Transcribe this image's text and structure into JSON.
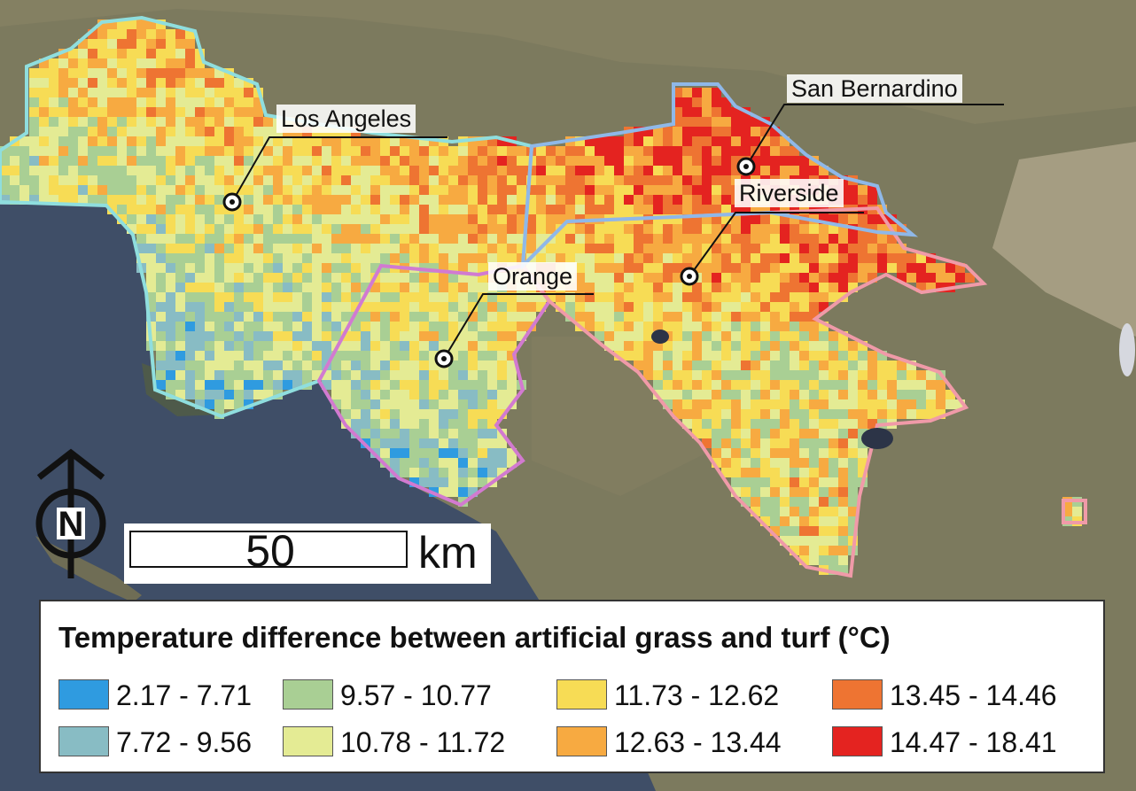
{
  "map": {
    "cities": [
      {
        "name": "Los Angeles"
      },
      {
        "name": "San Bernardino"
      },
      {
        "name": "Riverside"
      },
      {
        "name": "Orange"
      }
    ],
    "north_arrow_letter": "N",
    "scale": {
      "value": "50",
      "unit": "km"
    }
  },
  "legend": {
    "title": "Temperature difference between artificial grass and turf (°C)",
    "items": [
      {
        "label": "2.17 - 7.71",
        "color": "#2f9be0"
      },
      {
        "label": "7.72 - 9.56",
        "color": "#88bcc4"
      },
      {
        "label": "9.57 - 10.77",
        "color": "#a9cf94"
      },
      {
        "label": "10.78 - 11.72",
        "color": "#e4eb94"
      },
      {
        "label": "11.73 - 12.62",
        "color": "#f7dc55"
      },
      {
        "label": "12.63 - 13.44",
        "color": "#f7aa41"
      },
      {
        "label": "13.45 - 14.46",
        "color": "#ee7432"
      },
      {
        "label": "14.47 - 18.41",
        "color": "#e42320"
      }
    ]
  },
  "colors": {
    "ocean": "#3f4e67",
    "land": "#7f7c5c",
    "county_border_la": "#8fdede",
    "county_border_orange": "#d27ad0",
    "county_border_riverside": "#f09aa8",
    "county_border_sanbernardino": "#8fb8e8"
  }
}
